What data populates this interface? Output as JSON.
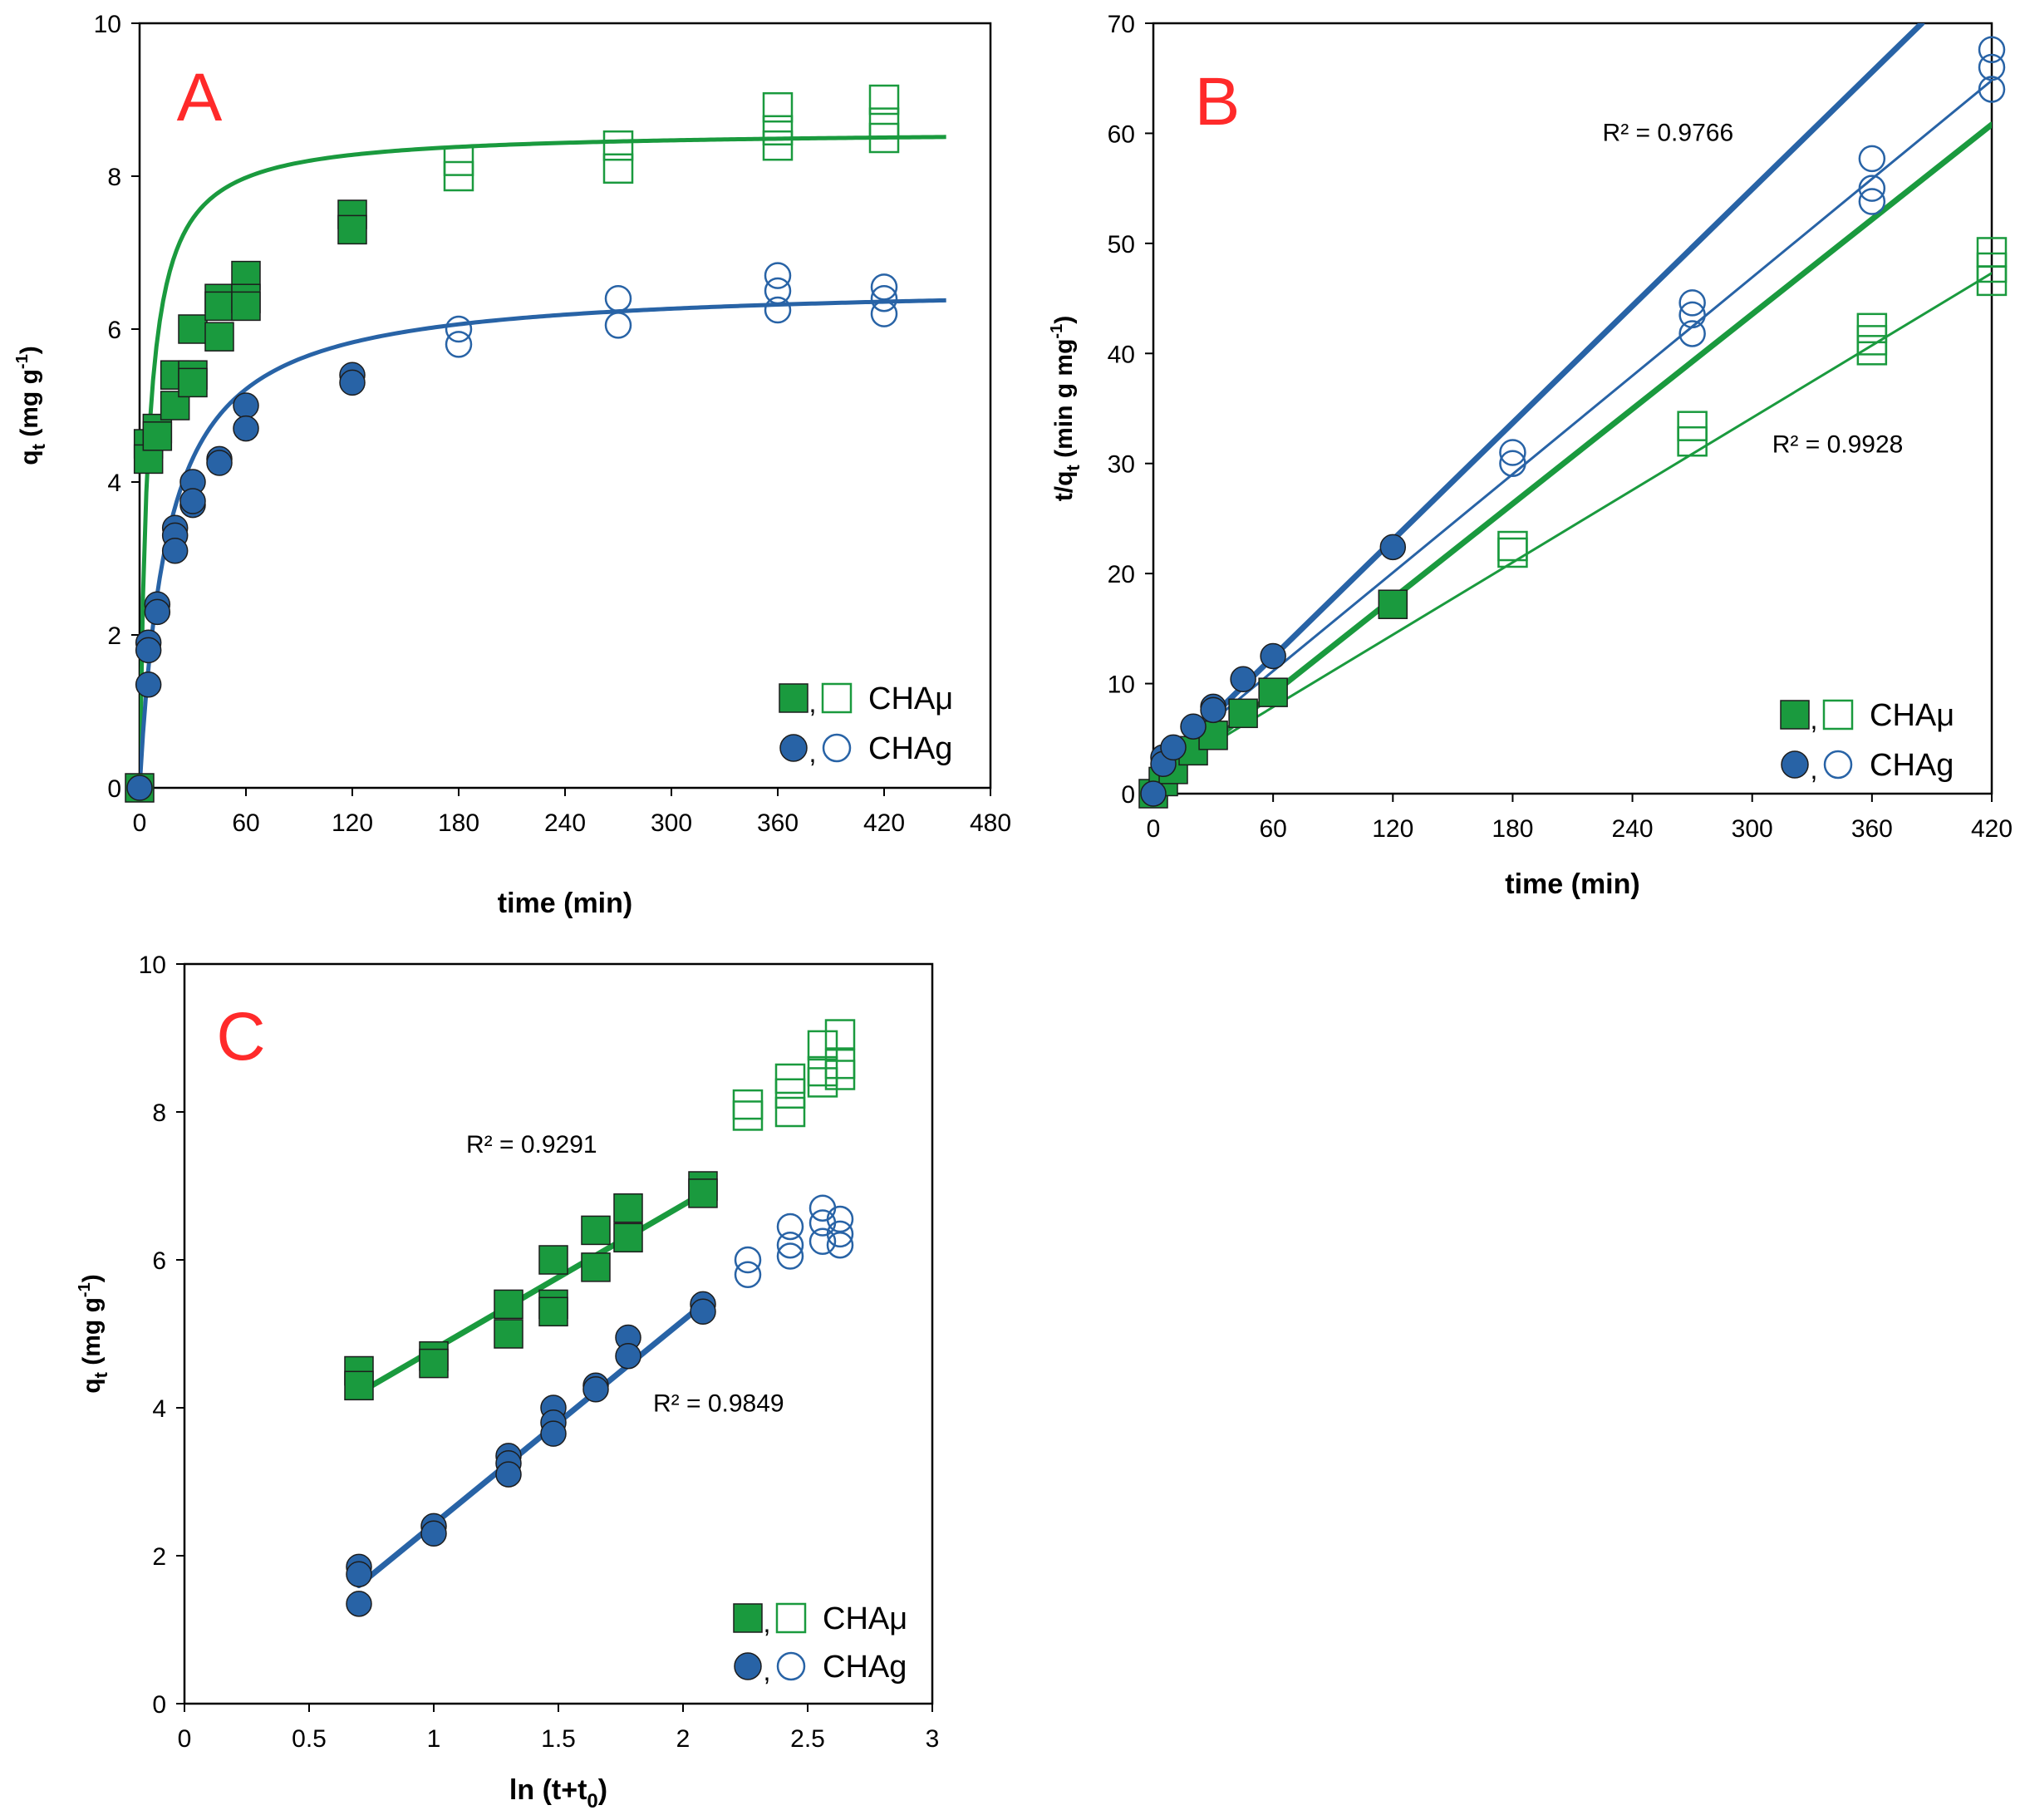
{
  "colors": {
    "green": "#1a9a3e",
    "blue": "#2863a6",
    "panel_letter": "#ff2a2a",
    "axis": "#000000"
  },
  "chart_data": [
    {
      "panel": "A",
      "type": "scatter",
      "panel_label": "A",
      "xlabel": "time (min)",
      "ylabel": "q_t (mg g^-1)",
      "ylabel_parts": {
        "main": "q",
        "sub": "t",
        "unit": " (mg g",
        "sup": "-1",
        "close": ")"
      },
      "xlim": [
        0,
        480
      ],
      "ylim": [
        0,
        10
      ],
      "xticks": [
        0,
        60,
        120,
        180,
        240,
        300,
        360,
        420,
        480
      ],
      "yticks": [
        0,
        2,
        4,
        6,
        8,
        10
      ],
      "legend": [
        {
          "label": "CHAμ",
          "color_key": "green",
          "shape": "square"
        },
        {
          "label": "CHAg",
          "color_key": "blue",
          "shape": "circle"
        }
      ],
      "series": [
        {
          "name": "CHAμ (filled)",
          "color_key": "green",
          "marker": "square",
          "fill": "filled",
          "points": [
            [
              0,
              0
            ],
            [
              5,
              4.5
            ],
            [
              5,
              4.3
            ],
            [
              10,
              4.7
            ],
            [
              10,
              4.6
            ],
            [
              20,
              5.4
            ],
            [
              20,
              5.0
            ],
            [
              30,
              6.0
            ],
            [
              30,
              5.4
            ],
            [
              30,
              5.3
            ],
            [
              45,
              6.4
            ],
            [
              45,
              6.3
            ],
            [
              45,
              5.9
            ],
            [
              60,
              6.7
            ],
            [
              60,
              6.4
            ],
            [
              60,
              6.3
            ],
            [
              120,
              7.5
            ],
            [
              120,
              7.3
            ]
          ]
        },
        {
          "name": "CHAμ (open)",
          "color_key": "green",
          "marker": "square",
          "fill": "open",
          "points": [
            [
              180,
              8.2
            ],
            [
              180,
              8.0
            ],
            [
              270,
              8.4
            ],
            [
              270,
              8.1
            ],
            [
              360,
              8.9
            ],
            [
              360,
              8.6
            ],
            [
              360,
              8.4
            ],
            [
              420,
              9.0
            ],
            [
              420,
              8.7
            ],
            [
              420,
              8.5
            ]
          ]
        },
        {
          "name": "CHAg (filled)",
          "color_key": "blue",
          "marker": "circle",
          "fill": "filled",
          "points": [
            [
              0,
              0
            ],
            [
              5,
              1.9
            ],
            [
              5,
              1.8
            ],
            [
              5,
              1.35
            ],
            [
              10,
              2.4
            ],
            [
              10,
              2.3
            ],
            [
              20,
              3.4
            ],
            [
              20,
              3.3
            ],
            [
              20,
              3.1
            ],
            [
              30,
              4.0
            ],
            [
              30,
              3.7
            ],
            [
              30,
              3.75
            ],
            [
              45,
              4.3
            ],
            [
              45,
              4.25
            ],
            [
              60,
              5.0
            ],
            [
              60,
              4.7
            ],
            [
              120,
              5.4
            ],
            [
              120,
              5.3
            ]
          ]
        },
        {
          "name": "CHAg (open)",
          "color_key": "blue",
          "marker": "circle",
          "fill": "open",
          "points": [
            [
              180,
              6.0
            ],
            [
              180,
              5.8
            ],
            [
              270,
              6.4
            ],
            [
              270,
              6.05
            ],
            [
              360,
              6.7
            ],
            [
              360,
              6.5
            ],
            [
              360,
              6.25
            ],
            [
              420,
              6.55
            ],
            [
              420,
              6.4
            ],
            [
              420,
              6.2
            ]
          ]
        }
      ],
      "fits": [
        {
          "name": "CHAμ fit",
          "color_key": "green",
          "model": "pseudo-second-order",
          "qe": 8.6,
          "k": 0.025,
          "x_range": [
            0,
            455
          ]
        },
        {
          "name": "CHAg fit",
          "color_key": "blue",
          "model": "pseudo-second-order",
          "qe": 6.6,
          "k": 0.0095,
          "x_range": [
            0,
            455
          ]
        }
      ],
      "annotations": []
    },
    {
      "panel": "B",
      "type": "scatter",
      "panel_label": "B",
      "xlabel": "time (min)",
      "ylabel": "t/q_t (min g mg^-1)",
      "ylabel_parts": {
        "main": "t/q",
        "sub": "t",
        "unit": " (min g mg",
        "sup": "-1",
        "close": ")"
      },
      "xlim": [
        0,
        420
      ],
      "ylim": [
        0,
        70
      ],
      "xticks": [
        0,
        60,
        120,
        180,
        240,
        300,
        360,
        420
      ],
      "yticks": [
        0,
        10,
        20,
        30,
        40,
        50,
        60,
        70
      ],
      "legend": [
        {
          "label": "CHAμ",
          "color_key": "green",
          "shape": "square"
        },
        {
          "label": "CHAg",
          "color_key": "blue",
          "shape": "circle"
        }
      ],
      "series": [
        {
          "name": "CHAμ (filled)",
          "color_key": "green",
          "marker": "square",
          "fill": "filled",
          "points": [
            [
              0,
              0
            ],
            [
              5,
              1.1
            ],
            [
              10,
              2.2
            ],
            [
              20,
              3.9
            ],
            [
              30,
              5.3
            ],
            [
              45,
              7.3
            ],
            [
              60,
              9.2
            ],
            [
              120,
              17.2
            ]
          ]
        },
        {
          "name": "CHAμ (open)",
          "color_key": "green",
          "marker": "square",
          "fill": "open",
          "points": [
            [
              180,
              22.5
            ],
            [
              180,
              21.9
            ],
            [
              270,
              33.4
            ],
            [
              270,
              32.0
            ],
            [
              360,
              42.3
            ],
            [
              360,
              41.2
            ],
            [
              360,
              40.3
            ],
            [
              420,
              49.2
            ],
            [
              420,
              47.8
            ],
            [
              420,
              46.6
            ]
          ]
        },
        {
          "name": "CHAg (filled)",
          "color_key": "blue",
          "marker": "circle",
          "fill": "filled",
          "points": [
            [
              0,
              0
            ],
            [
              5,
              3.3
            ],
            [
              5,
              2.7
            ],
            [
              10,
              4.2
            ],
            [
              20,
              6.1
            ],
            [
              30,
              7.9
            ],
            [
              30,
              7.6
            ],
            [
              45,
              10.4
            ],
            [
              60,
              12.5
            ],
            [
              120,
              22.4
            ]
          ]
        },
        {
          "name": "CHAg (open)",
          "color_key": "blue",
          "marker": "circle",
          "fill": "open",
          "points": [
            [
              180,
              31.0
            ],
            [
              180,
              30.0
            ],
            [
              270,
              44.6
            ],
            [
              270,
              43.5
            ],
            [
              270,
              41.8
            ],
            [
              360,
              57.7
            ],
            [
              360,
              55.0
            ],
            [
              360,
              53.8
            ],
            [
              420,
              67.6
            ],
            [
              420,
              66.0
            ],
            [
              420,
              64.0
            ]
          ]
        }
      ],
      "fits": [
        {
          "name": "CHAg fit (filled)",
          "color_key": "blue",
          "width": "thick",
          "line": [
            [
              0,
              1.8
            ],
            [
              385,
              70
            ]
          ]
        },
        {
          "name": "CHAg fit (all)",
          "color_key": "blue",
          "width": "thin",
          "line": [
            [
              0,
              2.2
            ],
            [
              420,
              64.8
            ]
          ]
        },
        {
          "name": "CHAμ fit (filled)",
          "color_key": "green",
          "width": "thick",
          "line": [
            [
              0,
              0.5
            ],
            [
              420,
              60.8
            ]
          ]
        },
        {
          "name": "CHAμ fit (all)",
          "color_key": "green",
          "width": "thin",
          "line": [
            [
              0,
              1.3
            ],
            [
              420,
              47.3
            ]
          ]
        }
      ],
      "annotations": [
        {
          "text": "R² = 0.9766",
          "x": 225,
          "y": 59.3
        },
        {
          "text": "R² = 0.9928",
          "x": 310,
          "y": 31.0
        }
      ]
    },
    {
      "panel": "C",
      "type": "scatter",
      "panel_label": "C",
      "xlabel": "ln (t+t0)",
      "xlabel_parts": {
        "main": "ln (t+t",
        "sub": "0",
        "close": ")"
      },
      "ylabel": "q_t (mg g^-1)",
      "ylabel_parts": {
        "main": "q",
        "sub": "t",
        "unit": " (mg g",
        "sup": "-1",
        "close": ")"
      },
      "xlim": [
        0,
        3
      ],
      "ylim": [
        0,
        10
      ],
      "xticks": [
        0,
        0.5,
        1,
        1.5,
        2,
        2.5,
        3
      ],
      "yticks": [
        0,
        2,
        4,
        6,
        8,
        10
      ],
      "legend": [
        {
          "label": "CHAμ",
          "color_key": "green",
          "shape": "square"
        },
        {
          "label": "CHAg",
          "color_key": "blue",
          "shape": "circle"
        }
      ],
      "series": [
        {
          "name": "CHAμ (filled)",
          "color_key": "green",
          "marker": "square",
          "fill": "filled",
          "points": [
            [
              0.7,
              4.5
            ],
            [
              0.7,
              4.3
            ],
            [
              1.0,
              4.7
            ],
            [
              1.0,
              4.6
            ],
            [
              1.3,
              5.4
            ],
            [
              1.3,
              5.0
            ],
            [
              1.48,
              6.0
            ],
            [
              1.48,
              5.4
            ],
            [
              1.48,
              5.3
            ],
            [
              1.65,
              6.4
            ],
            [
              1.65,
              5.9
            ],
            [
              1.78,
              6.7
            ],
            [
              1.78,
              6.3
            ],
            [
              2.08,
              7.0
            ],
            [
              2.08,
              6.9
            ]
          ]
        },
        {
          "name": "CHAμ (open)",
          "color_key": "green",
          "marker": "square",
          "fill": "open",
          "points": [
            [
              2.26,
              8.1
            ],
            [
              2.26,
              7.95
            ],
            [
              2.43,
              8.45
            ],
            [
              2.43,
              8.25
            ],
            [
              2.43,
              8.0
            ],
            [
              2.56,
              8.9
            ],
            [
              2.56,
              8.55
            ],
            [
              2.56,
              8.4
            ],
            [
              2.63,
              9.05
            ],
            [
              2.63,
              8.65
            ],
            [
              2.63,
              8.5
            ]
          ]
        },
        {
          "name": "CHAg (filled)",
          "color_key": "blue",
          "marker": "circle",
          "fill": "filled",
          "points": [
            [
              0.7,
              1.85
            ],
            [
              0.7,
              1.75
            ],
            [
              0.7,
              1.35
            ],
            [
              1.0,
              2.4
            ],
            [
              1.0,
              2.3
            ],
            [
              1.3,
              3.35
            ],
            [
              1.3,
              3.25
            ],
            [
              1.3,
              3.1
            ],
            [
              1.48,
              4.0
            ],
            [
              1.48,
              3.8
            ],
            [
              1.48,
              3.65
            ],
            [
              1.65,
              4.3
            ],
            [
              1.65,
              4.25
            ],
            [
              1.78,
              4.95
            ],
            [
              1.78,
              4.7
            ],
            [
              2.08,
              5.4
            ],
            [
              2.08,
              5.3
            ]
          ]
        },
        {
          "name": "CHAg (open)",
          "color_key": "blue",
          "marker": "circle",
          "fill": "open",
          "points": [
            [
              2.26,
              6.0
            ],
            [
              2.26,
              5.8
            ],
            [
              2.43,
              6.45
            ],
            [
              2.43,
              6.2
            ],
            [
              2.43,
              6.05
            ],
            [
              2.56,
              6.7
            ],
            [
              2.56,
              6.5
            ],
            [
              2.56,
              6.25
            ],
            [
              2.63,
              6.55
            ],
            [
              2.63,
              6.35
            ],
            [
              2.63,
              6.2
            ]
          ]
        }
      ],
      "fits": [
        {
          "name": "CHAμ fit",
          "color_key": "green",
          "width": "thick",
          "line": [
            [
              0.7,
              4.2
            ],
            [
              2.08,
              6.9
            ]
          ]
        },
        {
          "name": "CHAg fit",
          "color_key": "blue",
          "width": "thick",
          "line": [
            [
              0.7,
              1.6
            ],
            [
              2.08,
              5.4
            ]
          ]
        }
      ],
      "annotations": [
        {
          "text": "R² = 0.9291",
          "x": 1.13,
          "y": 7.45
        },
        {
          "text": "R² = 0.9849",
          "x": 1.88,
          "y": 3.95
        }
      ]
    }
  ]
}
